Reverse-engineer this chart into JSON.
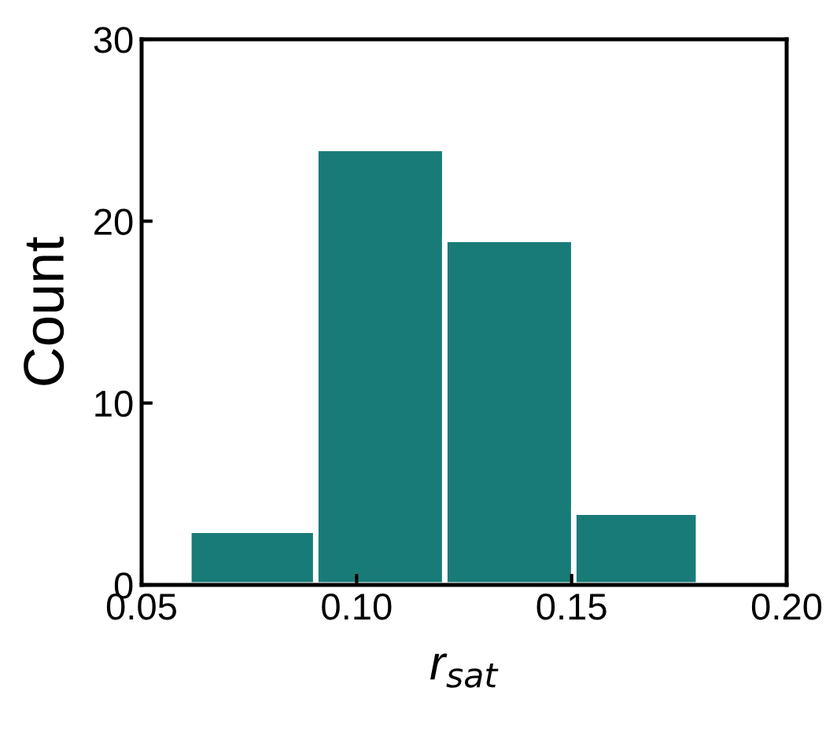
{
  "chart_data": {
    "type": "histogram",
    "xlabel": "r$_{sat}$",
    "ylabel": "Count",
    "bins": [
      0.061,
      0.0905,
      0.1205,
      0.1505,
      0.1795
    ],
    "values": [
      3,
      24,
      19,
      4
    ],
    "color": "#187b78",
    "xlim": [
      0.05,
      0.2
    ],
    "xticks": [
      {
        "value": 0.05,
        "label": "0.05"
      },
      {
        "value": 0.1,
        "label": "0.10"
      },
      {
        "value": 0.15,
        "label": "0.15"
      },
      {
        "value": 0.2,
        "label": "0.20"
      }
    ],
    "ylim": [
      0,
      30
    ],
    "yticks": [
      0,
      10,
      20,
      30
    ],
    "grid": false
  }
}
